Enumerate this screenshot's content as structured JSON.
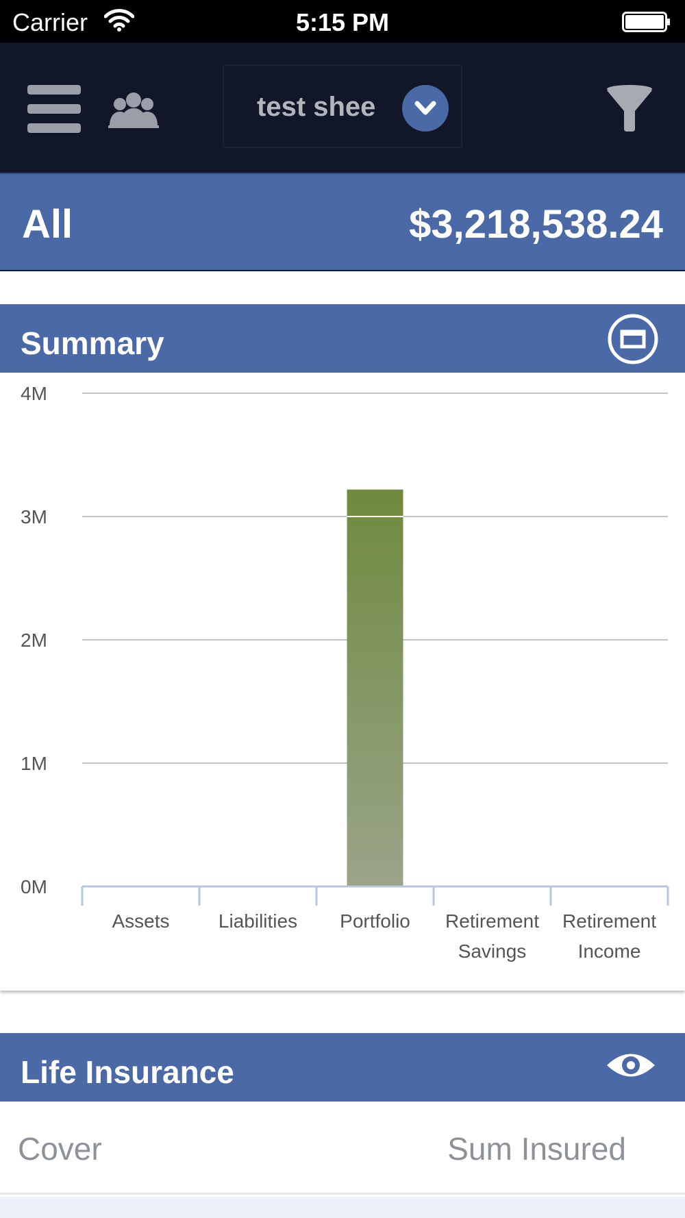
{
  "status_bar": {
    "carrier": "Carrier",
    "time": "5:15 PM"
  },
  "nav": {
    "menu_icon": "hamburger-menu-icon",
    "clients_icon": "people-group-icon",
    "selector_label": "test shee",
    "selector_icon": "chevron-down-icon",
    "filter_icon": "funnel-icon"
  },
  "total": {
    "label": "All",
    "value": "$3,218,538.24"
  },
  "summary": {
    "title": "Summary",
    "action_icon": "minimize-window-icon"
  },
  "chart_data": {
    "type": "bar",
    "title": "",
    "xlabel": "",
    "ylabel": "",
    "ylim": [
      0,
      4000000
    ],
    "yticks": [
      {
        "value": 0,
        "label": "0M"
      },
      {
        "value": 1000000,
        "label": "1M"
      },
      {
        "value": 2000000,
        "label": "2M"
      },
      {
        "value": 3000000,
        "label": "3M"
      },
      {
        "value": 4000000,
        "label": "4M"
      }
    ],
    "categories": [
      [
        "Assets"
      ],
      [
        "Liabilities"
      ],
      [
        "Portfolio"
      ],
      [
        "Retirement",
        "Savings"
      ],
      [
        "Retirement",
        "Income"
      ]
    ],
    "values": [
      0,
      0,
      3218538.24,
      0,
      0
    ],
    "bar_color_top": "#6f8a3e",
    "bar_color_bottom": "#9aa48a",
    "grid": true
  },
  "life_insurance": {
    "title": "Life Insurance",
    "action_icon": "eye-icon",
    "columns": [
      "Cover",
      "Sum Insured"
    ]
  }
}
